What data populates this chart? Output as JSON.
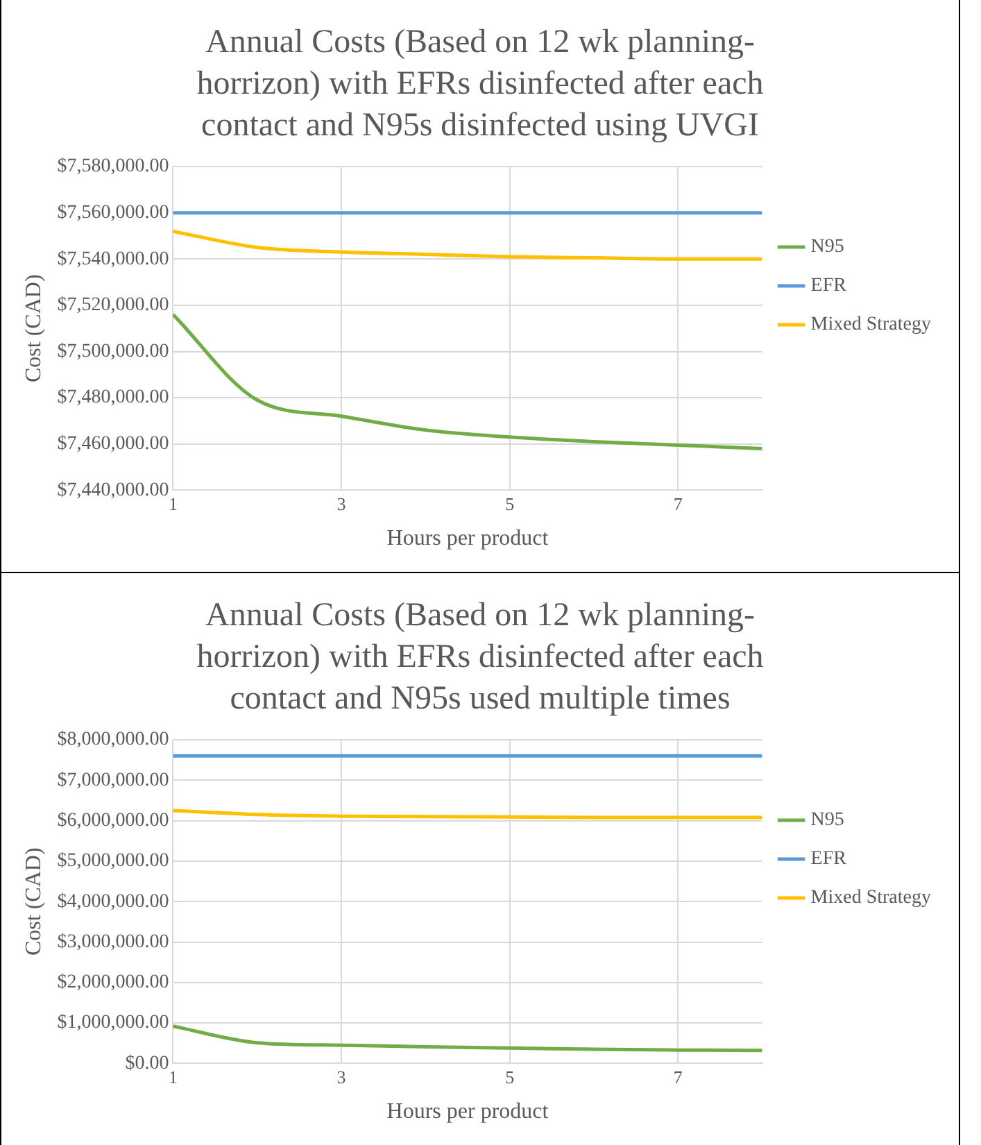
{
  "chart_data": [
    {
      "type": "line",
      "title": "Annual Costs (Based on 12 wk planning-horrizon) with EFRs disinfected after each contact and N95s disinfected using UVGI",
      "xlabel": "Hours per product",
      "ylabel": "Cost (CAD)",
      "x": [
        1,
        2,
        3,
        4,
        5,
        6,
        7,
        8
      ],
      "xlim": [
        1,
        8
      ],
      "xticks": [
        1,
        3,
        5,
        7
      ],
      "ylim": [
        7440000,
        7580000
      ],
      "yticks": [
        {
          "value": 7440000,
          "label": "$7,440,000.00"
        },
        {
          "value": 7460000,
          "label": "$7,460,000.00"
        },
        {
          "value": 7480000,
          "label": "$7,480,000.00"
        },
        {
          "value": 7500000,
          "label": "$7,500,000.00"
        },
        {
          "value": 7520000,
          "label": "$7,520,000.00"
        },
        {
          "value": 7540000,
          "label": "$7,540,000.00"
        },
        {
          "value": 7560000,
          "label": "$7,560,000.00"
        },
        {
          "value": 7580000,
          "label": "$7,580,000.00"
        }
      ],
      "grid": true,
      "legend": "right",
      "marker": "none",
      "line_style": "solid",
      "series": [
        {
          "name": "N95",
          "color": "#70ad47",
          "values": [
            7516000,
            7479000,
            7472000,
            7466000,
            7463000,
            7461000,
            7459500,
            7458000
          ]
        },
        {
          "name": "EFR",
          "color": "#5b9bd5",
          "values": [
            7560000,
            7560000,
            7560000,
            7560000,
            7560000,
            7560000,
            7560000,
            7560000
          ]
        },
        {
          "name": "Mixed Strategy",
          "color": "#ffc000",
          "values": [
            7552000,
            7545000,
            7543000,
            7542000,
            7541000,
            7540500,
            7540000,
            7540000
          ]
        }
      ]
    },
    {
      "type": "line",
      "title": "Annual Costs (Based on 12 wk planning-horrizon) with EFRs disinfected after each contact and N95s used multiple times",
      "xlabel": "Hours per product",
      "ylabel": "Cost (CAD)",
      "x": [
        1,
        2,
        3,
        4,
        5,
        6,
        7,
        8
      ],
      "xlim": [
        1,
        8
      ],
      "xticks": [
        1,
        3,
        5,
        7
      ],
      "ylim": [
        0,
        8000000
      ],
      "yticks": [
        {
          "value": 0,
          "label": "$0.00"
        },
        {
          "value": 1000000,
          "label": "$1,000,000.00"
        },
        {
          "value": 2000000,
          "label": "$2,000,000.00"
        },
        {
          "value": 3000000,
          "label": "$3,000,000.00"
        },
        {
          "value": 4000000,
          "label": "$4,000,000.00"
        },
        {
          "value": 5000000,
          "label": "$5,000,000.00"
        },
        {
          "value": 6000000,
          "label": "$6,000,000.00"
        },
        {
          "value": 7000000,
          "label": "$7,000,000.00"
        },
        {
          "value": 8000000,
          "label": "$8,000,000.00"
        }
      ],
      "grid": true,
      "legend": "right",
      "marker": "none",
      "line_style": "solid",
      "series": [
        {
          "name": "N95",
          "color": "#70ad47",
          "values": [
            920000,
            510000,
            450000,
            410000,
            380000,
            350000,
            330000,
            320000
          ]
        },
        {
          "name": "EFR",
          "color": "#5b9bd5",
          "values": [
            7600000,
            7600000,
            7600000,
            7600000,
            7600000,
            7600000,
            7600000,
            7600000
          ]
        },
        {
          "name": "Mixed Strategy",
          "color": "#ffc000",
          "values": [
            6250000,
            6150000,
            6110000,
            6100000,
            6090000,
            6080000,
            6080000,
            6080000
          ]
        }
      ]
    }
  ]
}
